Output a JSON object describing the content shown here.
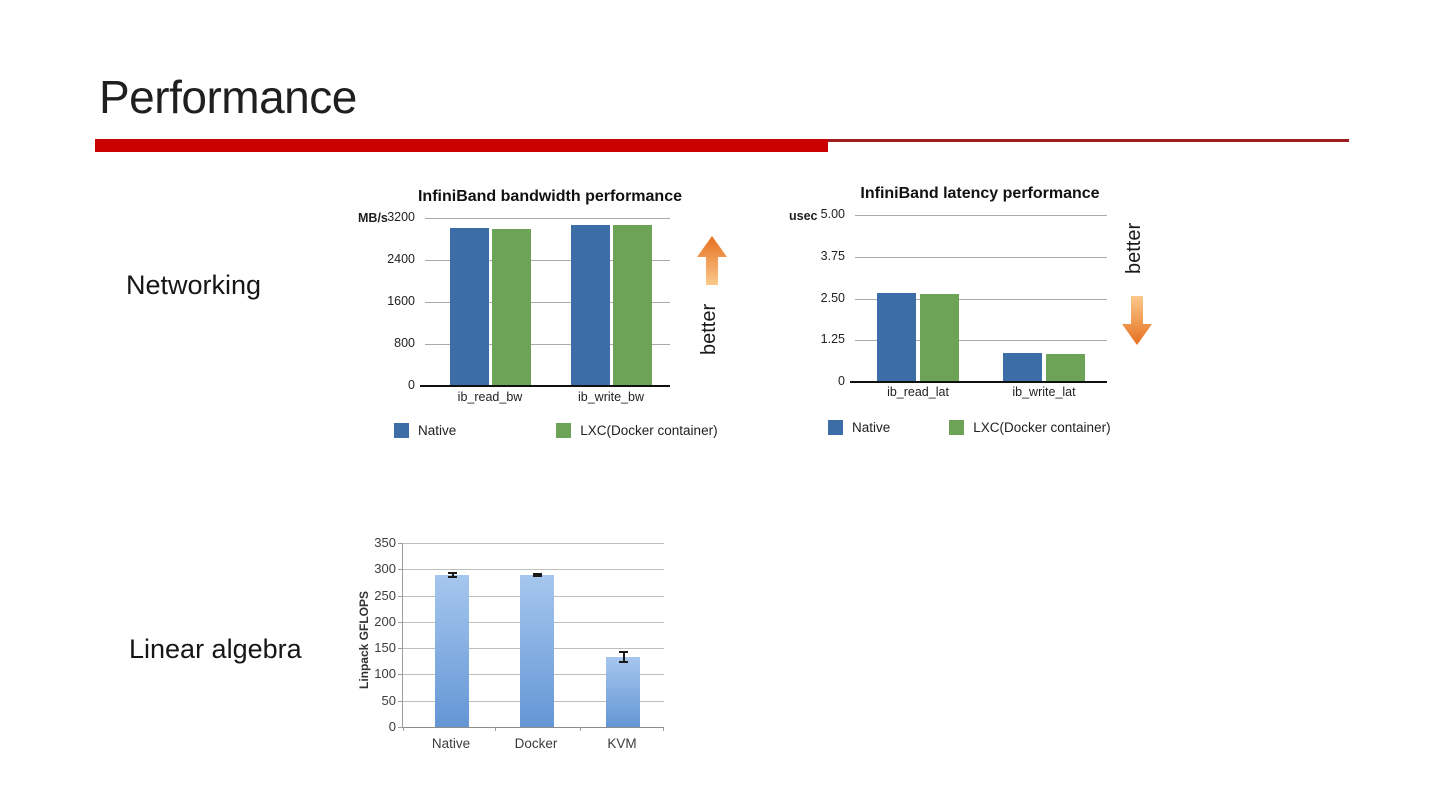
{
  "slide": {
    "title": "Performance",
    "background_color": "#ffffff",
    "accent_bar_color": "#c90101",
    "accent_line_color": "#9c1c1f"
  },
  "sections": {
    "networking_label": "Networking",
    "linear_algebra_label": "Linear algebra"
  },
  "annotations": {
    "better_up_label": "better",
    "better_down_label": "better",
    "arrow_dark_color": "#e66f1e",
    "arrow_light_color": "#fbc98c"
  },
  "chart_data": [
    {
      "type": "bar",
      "title": "InfiniBand bandwidth performance",
      "ylabel": "MB/s",
      "categories": [
        "ib_read_bw",
        "ib_write_bw"
      ],
      "series": [
        {
          "name": "Native",
          "color": "#3c6da6",
          "values": [
            3000,
            3070
          ]
        },
        {
          "name": "LXC(Docker container)",
          "color": "#6da356",
          "values": [
            2990,
            3060
          ]
        }
      ],
      "ylim": [
        0,
        3200
      ],
      "yticks": [
        "0",
        "800",
        "1600",
        "2400",
        "3200"
      ],
      "grid": true,
      "legend_position": "bottom",
      "annotation": "better",
      "annotation_direction": "up"
    },
    {
      "type": "bar",
      "title": "InfiniBand latency performance",
      "ylabel": "usec",
      "categories": [
        "ib_read_lat",
        "ib_write_lat"
      ],
      "series": [
        {
          "name": "Native",
          "color": "#3c6da6",
          "values": [
            2.67,
            0.86
          ]
        },
        {
          "name": "LXC(Docker container)",
          "color": "#6da356",
          "values": [
            2.63,
            0.84
          ]
        }
      ],
      "ylim": [
        0,
        5
      ],
      "yticks": [
        "0",
        "1.25",
        "2.50",
        "3.75",
        "5.00"
      ],
      "grid": true,
      "legend_position": "bottom",
      "annotation": "better",
      "annotation_direction": "down"
    },
    {
      "type": "bar",
      "title": "",
      "ylabel": "Linpack GFLOPS",
      "categories": [
        "Native",
        "Docker",
        "KVM"
      ],
      "series": [
        {
          "name": "Linpack GFLOPS",
          "color_top": "#a6c7ee",
          "color_bottom": "#6496d5",
          "values": [
            290,
            289,
            133
          ],
          "errors": [
            5,
            3,
            11
          ]
        }
      ],
      "ylim": [
        0,
        350
      ],
      "yticks": [
        "0",
        "50",
        "100",
        "150",
        "200",
        "250",
        "300",
        "350"
      ],
      "grid": true,
      "legend_position": "none"
    }
  ]
}
